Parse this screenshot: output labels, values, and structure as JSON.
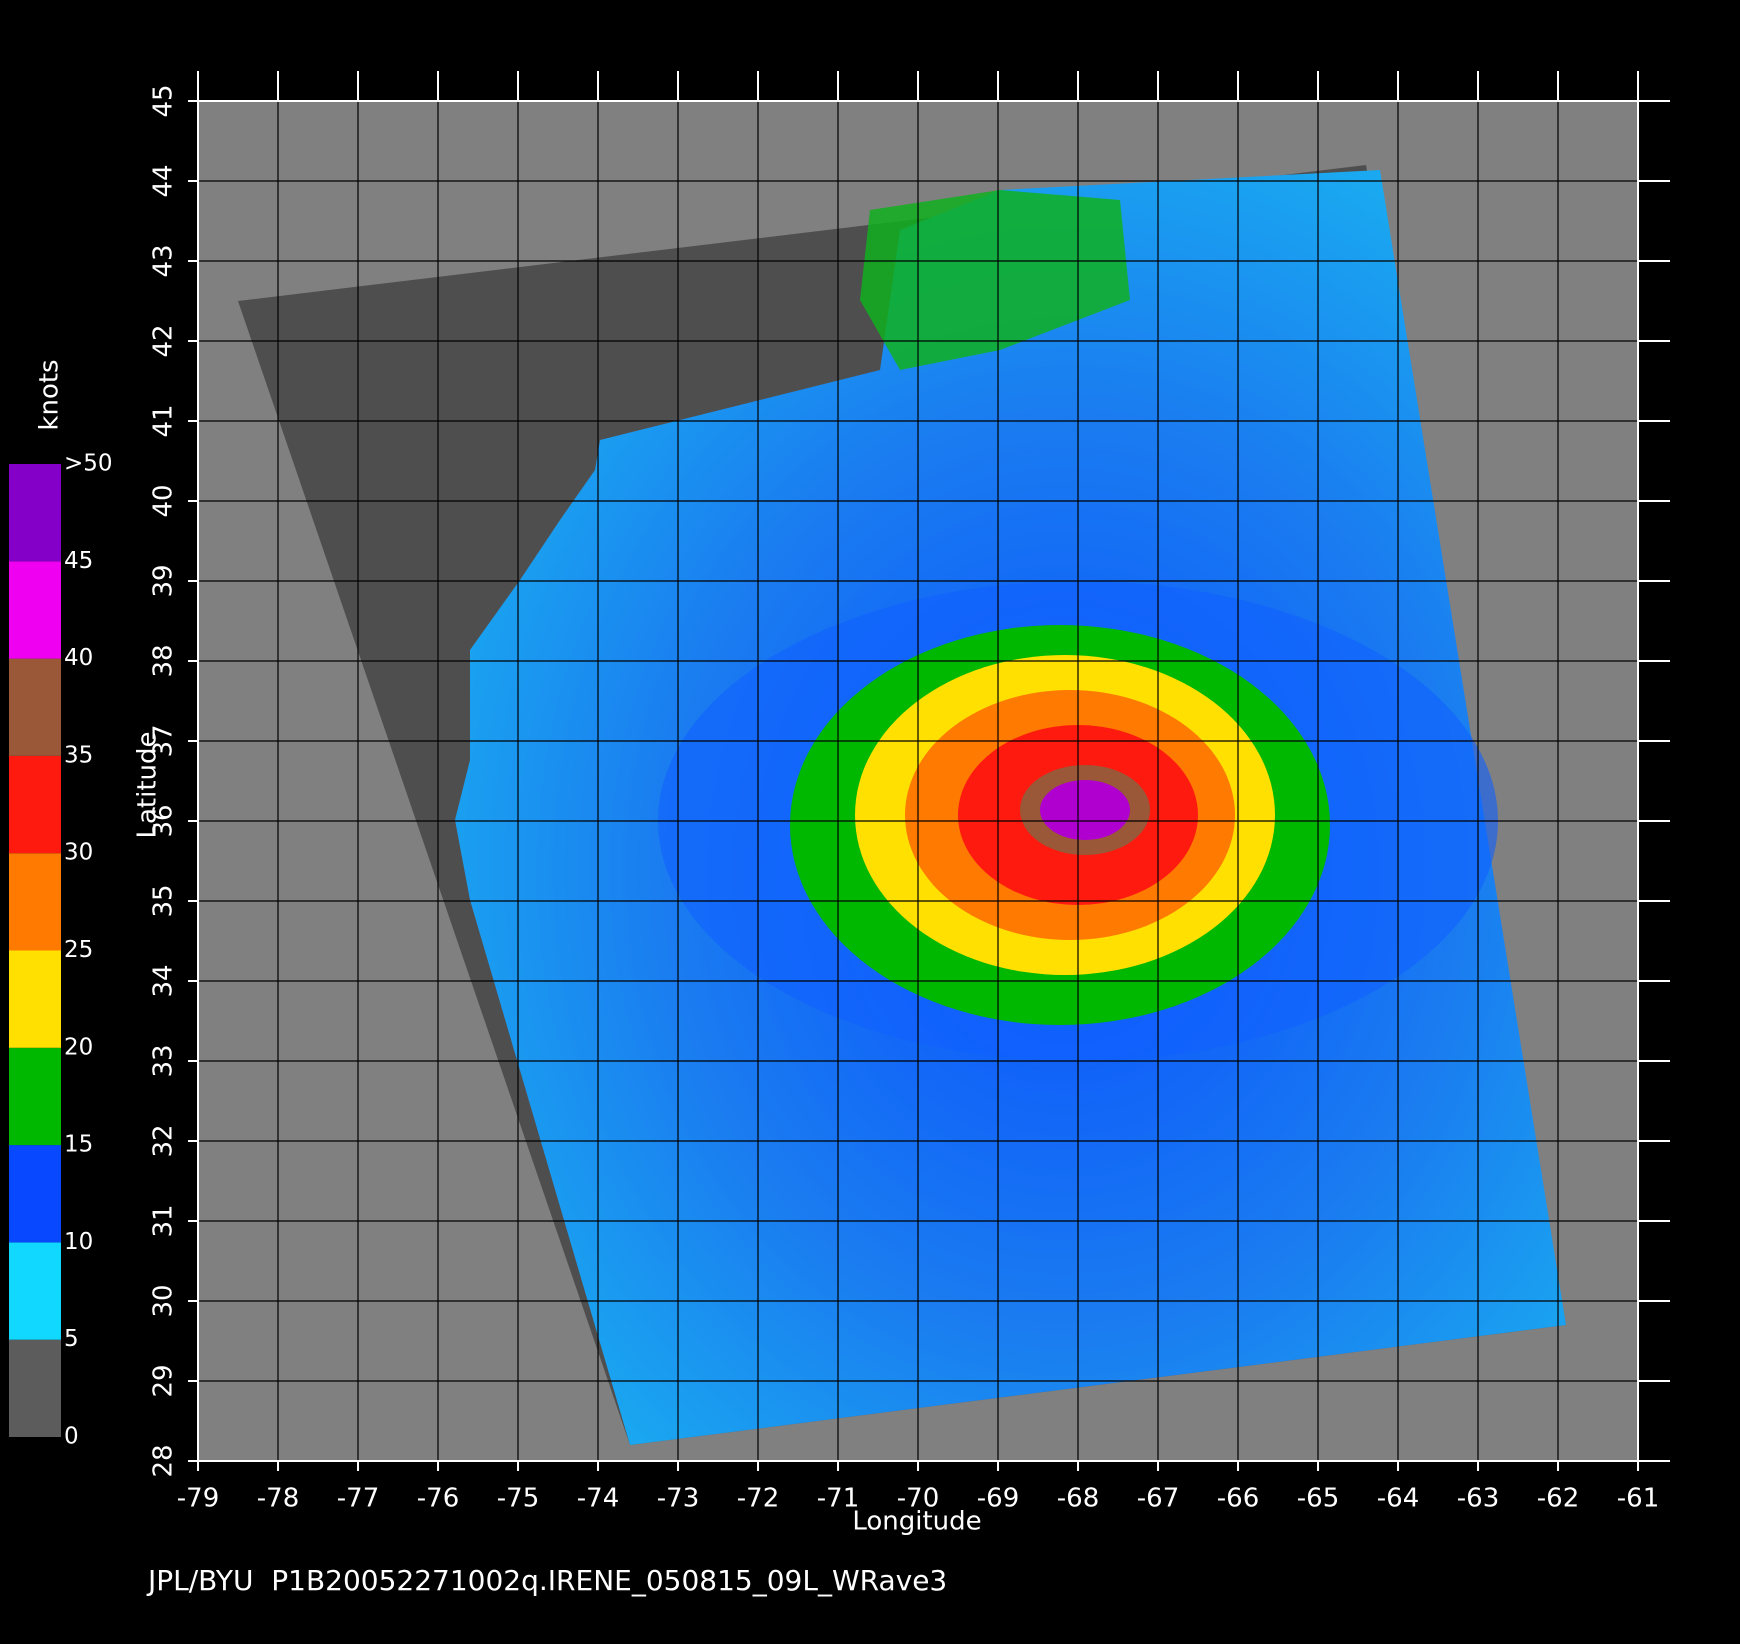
{
  "map": {
    "title": "JPL/BYU  P1B20052271002q.IRENE_050815_09L_WRave3",
    "x_label": "Longitude",
    "y_label": "Latitude",
    "xlim": [
      -79,
      -61
    ],
    "ylim": [
      28,
      45
    ],
    "xticks": [
      -79,
      -78,
      -77,
      -76,
      -75,
      -74,
      -73,
      -72,
      -71,
      -70,
      -69,
      -68,
      -67,
      -66,
      -65,
      -64,
      -63,
      -62,
      -61
    ],
    "yticks": [
      28,
      29,
      30,
      31,
      32,
      33,
      34,
      35,
      36,
      37,
      38,
      39,
      40,
      41,
      42,
      43,
      44,
      45
    ],
    "colorbar": {
      "label": "knots",
      "lim": [
        0,
        50
      ],
      "ticks": [
        0,
        5,
        10,
        15,
        20,
        25,
        30,
        35,
        40,
        45,
        {
          "value": 50,
          "label": ">50"
        }
      ],
      "colors": [
        "#5c5c5c",
        "#10d8ff",
        "#0848ff",
        "#00b800",
        "#ffe000",
        "#ff7a00",
        "#ff1a10",
        "#9a5838",
        "#f000f0",
        "#8400c8"
      ]
    }
  }
}
